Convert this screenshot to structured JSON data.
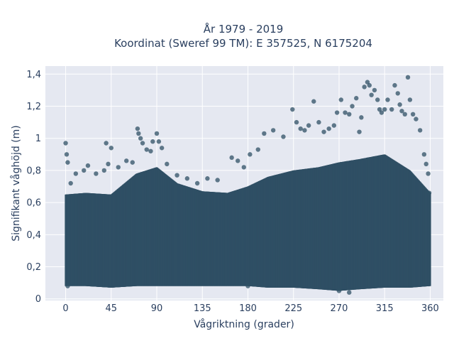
{
  "chart_data": {
    "type": "scatter",
    "title": "År 1979 - 2019",
    "subtitle": "Koordinat (Sweref 99 TM): E 357525, N 6175204",
    "xlabel": "Vågriktning (grader)",
    "ylabel": "Signifikant våghöjd (m)",
    "xlim": [
      -20,
      373
    ],
    "ylim": [
      -0.01,
      1.45
    ],
    "x_ticks": [
      0,
      45,
      90,
      135,
      180,
      225,
      270,
      315,
      360
    ],
    "x_tick_labels": [
      "0",
      "45",
      "90",
      "135",
      "180",
      "225",
      "270",
      "315",
      "360"
    ],
    "y_ticks": [
      0,
      0.2,
      0.4,
      0.6,
      0.8,
      1.0,
      1.2,
      1.4
    ],
    "y_tick_labels": [
      "0",
      "0,2",
      "0,4",
      "0,6",
      "0,8",
      "1",
      "1,2",
      "1,4"
    ],
    "grid": true,
    "color": "#2f5064",
    "x_range_of_data": [
      0,
      360
    ],
    "dense_band": {
      "x": [
        0,
        20,
        45,
        70,
        90,
        110,
        135,
        160,
        180,
        200,
        225,
        250,
        270,
        290,
        315,
        340,
        360
      ],
      "lower": [
        0.08,
        0.08,
        0.07,
        0.08,
        0.08,
        0.08,
        0.08,
        0.08,
        0.08,
        0.07,
        0.07,
        0.06,
        0.05,
        0.06,
        0.07,
        0.07,
        0.08
      ],
      "upper": [
        0.65,
        0.66,
        0.65,
        0.78,
        0.82,
        0.72,
        0.67,
        0.66,
        0.7,
        0.76,
        0.8,
        0.82,
        0.85,
        0.87,
        0.9,
        0.8,
        0.66
      ]
    },
    "points": [
      [
        0,
        0.97
      ],
      [
        1,
        0.9
      ],
      [
        2,
        0.85
      ],
      [
        5,
        0.72
      ],
      [
        10,
        0.78
      ],
      [
        18,
        0.8
      ],
      [
        22,
        0.83
      ],
      [
        30,
        0.78
      ],
      [
        38,
        0.8
      ],
      [
        42,
        0.84
      ],
      [
        40,
        0.97
      ],
      [
        45,
        0.94
      ],
      [
        52,
        0.82
      ],
      [
        60,
        0.86
      ],
      [
        66,
        0.85
      ],
      [
        71,
        1.06
      ],
      [
        72,
        1.03
      ],
      [
        74,
        1.0
      ],
      [
        76,
        0.97
      ],
      [
        80,
        0.93
      ],
      [
        84,
        0.92
      ],
      [
        86,
        0.98
      ],
      [
        90,
        1.03
      ],
      [
        92,
        0.98
      ],
      [
        95,
        0.94
      ],
      [
        100,
        0.84
      ],
      [
        110,
        0.77
      ],
      [
        120,
        0.75
      ],
      [
        130,
        0.72
      ],
      [
        140,
        0.75
      ],
      [
        150,
        0.74
      ],
      [
        164,
        0.88
      ],
      [
        170,
        0.86
      ],
      [
        176,
        0.82
      ],
      [
        182,
        0.9
      ],
      [
        190,
        0.93
      ],
      [
        196,
        1.03
      ],
      [
        205,
        1.05
      ],
      [
        215,
        1.01
      ],
      [
        224,
        1.18
      ],
      [
        228,
        1.1
      ],
      [
        232,
        1.06
      ],
      [
        236,
        1.05
      ],
      [
        240,
        1.08
      ],
      [
        245,
        1.23
      ],
      [
        250,
        1.1
      ],
      [
        255,
        1.04
      ],
      [
        260,
        1.06
      ],
      [
        265,
        1.08
      ],
      [
        268,
        1.16
      ],
      [
        272,
        1.24
      ],
      [
        276,
        1.16
      ],
      [
        280,
        1.15
      ],
      [
        283,
        1.2
      ],
      [
        287,
        1.25
      ],
      [
        290,
        1.04
      ],
      [
        292,
        1.13
      ],
      [
        295,
        1.32
      ],
      [
        298,
        1.35
      ],
      [
        300,
        1.33
      ],
      [
        302,
        1.27
      ],
      [
        305,
        1.3
      ],
      [
        308,
        1.24
      ],
      [
        310,
        1.18
      ],
      [
        312,
        1.16
      ],
      [
        315,
        1.18
      ],
      [
        318,
        1.24
      ],
      [
        322,
        1.18
      ],
      [
        325,
        1.33
      ],
      [
        328,
        1.28
      ],
      [
        330,
        1.21
      ],
      [
        332,
        1.17
      ],
      [
        335,
        1.15
      ],
      [
        338,
        1.38
      ],
      [
        340,
        1.24
      ],
      [
        343,
        1.15
      ],
      [
        346,
        1.12
      ],
      [
        350,
        1.05
      ],
      [
        354,
        0.9
      ],
      [
        358,
        0.78
      ],
      [
        356,
        0.84
      ],
      [
        359,
        0.66
      ],
      [
        2,
        0.08
      ],
      [
        180,
        0.08
      ],
      [
        280,
        0.04
      ],
      [
        270,
        0.05
      ]
    ]
  }
}
